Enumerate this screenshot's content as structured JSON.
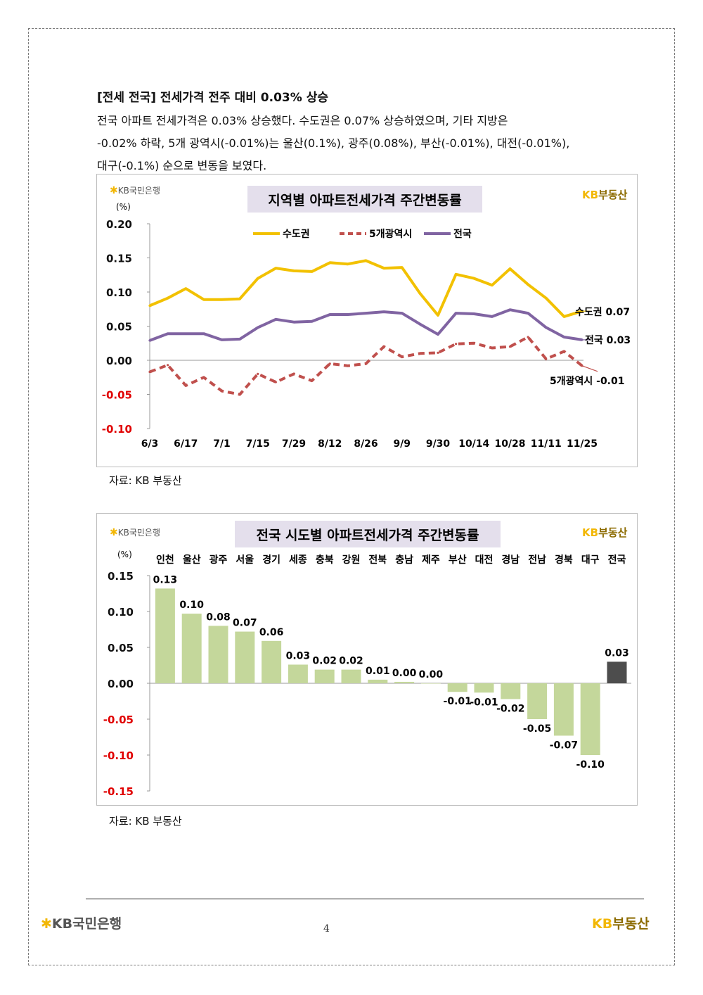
{
  "header": {
    "title": "[전세 전국] 전세가격 전주 대비 0.03% 상승",
    "para_lines": [
      "전국 아파트 전세가격은 0.03% 상승했다. 수도권은 0.07% 상승하였으며, 기타 지방은",
      "-0.02% 하락, 5개 광역시(-0.01%)는 울산(0.1%), 광주(0.08%), 부산(-0.01%), 대전(-0.01%),",
      "대구(-0.1%) 순으로 변동을 보였다."
    ]
  },
  "branding": {
    "kb_bank": "KB국민은행",
    "kb_realestate_kb": "KB",
    "kb_realestate_text": "부동산"
  },
  "source1": "자료: KB 부동산",
  "source2": "자료: KB 부동산",
  "page_number": "4",
  "colors": {
    "sudogwon": "#f2c100",
    "metro5": "#c0504d",
    "national": "#8064a2",
    "bar_green": "#c4d79b",
    "bar_dark": "#4d4d4d",
    "title_box": "#e4dfec",
    "negative_tick": "#e00000"
  },
  "chart_data": [
    {
      "type": "line",
      "title": "지역별 아파트전세가격 주간변동률",
      "ylabel": "(%)",
      "ylim": [
        -0.1,
        0.2
      ],
      "yticks": [
        "0.20",
        "0.15",
        "0.10",
        "0.05",
        "0.00",
        "-0.05",
        "-0.10"
      ],
      "x_tick_labels": [
        "6/3",
        "6/17",
        "7/1",
        "7/15",
        "7/29",
        "8/12",
        "8/26",
        "9/9",
        "9/30",
        "10/14",
        "10/28",
        "11/11",
        "11/25"
      ],
      "x_tick_index": [
        0,
        2,
        4,
        6,
        8,
        10,
        12,
        14,
        16,
        18,
        20,
        22,
        24
      ],
      "legend": "top",
      "series": [
        {
          "name": "수도권",
          "style": "solid",
          "end_label": "수도권 0.07",
          "values": [
            0.08,
            0.091,
            0.105,
            0.089,
            0.089,
            0.09,
            0.12,
            0.135,
            0.131,
            0.13,
            0.143,
            0.141,
            0.146,
            0.135,
            0.136,
            0.098,
            0.066,
            0.126,
            0.12,
            0.11,
            0.134,
            0.111,
            0.091,
            0.064,
            0.072
          ]
        },
        {
          "name": "5개광역시",
          "style": "dashed",
          "end_label": "5개광역시 -0.01",
          "values": [
            -0.017,
            -0.007,
            -0.037,
            -0.025,
            -0.045,
            -0.05,
            -0.02,
            -0.032,
            -0.02,
            -0.03,
            -0.005,
            -0.008,
            -0.005,
            0.02,
            0.005,
            0.01,
            0.011,
            0.024,
            0.025,
            0.018,
            0.02,
            0.034,
            0.002,
            0.013,
            -0.008
          ]
        },
        {
          "name": "전국",
          "style": "solid",
          "end_label": "전국 0.03",
          "values": [
            0.029,
            0.039,
            0.039,
            0.039,
            0.03,
            0.031,
            0.048,
            0.06,
            0.056,
            0.057,
            0.067,
            0.067,
            0.069,
            0.071,
            0.069,
            0.053,
            0.038,
            0.069,
            0.068,
            0.064,
            0.074,
            0.069,
            0.048,
            0.034,
            0.03
          ]
        }
      ]
    },
    {
      "type": "bar",
      "title": "전국 시도별 아파트전세가격 주간변동률",
      "ylabel": "(%)",
      "ylim": [
        -0.15,
        0.15
      ],
      "yticks": [
        "0.15",
        "0.10",
        "0.05",
        "0.00",
        "-0.05",
        "-0.10",
        "-0.15"
      ],
      "categories": [
        "인천",
        "울산",
        "광주",
        "서울",
        "경기",
        "세종",
        "충북",
        "강원",
        "전북",
        "충남",
        "제주",
        "부산",
        "대전",
        "경남",
        "전남",
        "경북",
        "대구",
        "전국"
      ],
      "values": [
        0.132,
        0.097,
        0.08,
        0.072,
        0.059,
        0.026,
        0.019,
        0.019,
        0.005,
        0.002,
        0.0,
        -0.012,
        -0.013,
        -0.022,
        -0.05,
        -0.073,
        -0.1,
        0.03
      ],
      "data_labels": [
        "0.13",
        "0.10",
        "0.08",
        "0.07",
        "0.06",
        "0.03",
        "0.02",
        "0.02",
        "0.01",
        "0.00",
        "0.00",
        "-0.01",
        "-0.01",
        "-0.02",
        "-0.05",
        "-0.07",
        "-0.10",
        "0.03"
      ],
      "highlight_last": true
    }
  ]
}
